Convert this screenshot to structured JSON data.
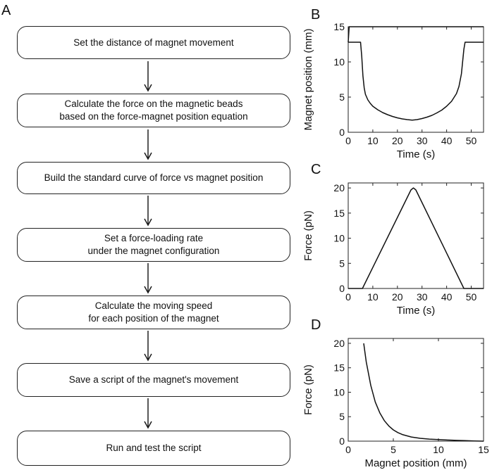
{
  "panel_labels": {
    "a": "A",
    "b": "B",
    "c": "C",
    "d": "D"
  },
  "flowchart": {
    "steps": [
      "Set the distance of magnet movement",
      "Calculate the force on the magnetic beads\nbased on the force-magnet position equation",
      "Build the standard curve of force vs magnet position",
      "Set a force-loading rate\nunder the magnet configuration",
      "Calculate the moving speed\nfor each position of the magnet",
      "Save a script of the magnet's movement",
      "Run and test the script"
    ]
  },
  "chart_data": [
    {
      "panel": "B",
      "type": "line",
      "title": "",
      "xlabel": "Time (s)",
      "ylabel": "Magnet position (mm)",
      "xlim": [
        0,
        55
      ],
      "ylim": [
        0,
        15
      ],
      "xticks": [
        0,
        10,
        20,
        30,
        40,
        50
      ],
      "yticks": [
        0,
        5,
        10,
        15
      ],
      "grid": false,
      "series": [
        {
          "x": [
            0,
            5,
            5.5,
            6,
            6.5,
            7,
            8,
            9,
            10,
            12,
            14,
            16,
            18,
            20,
            22,
            24,
            26,
            28,
            30,
            32,
            34,
            36,
            38,
            40,
            42,
            44,
            45,
            46,
            46.5,
            47,
            47.5,
            55
          ],
          "y": [
            12.8,
            12.8,
            10.8,
            8.0,
            6.3,
            5.4,
            4.6,
            4.1,
            3.7,
            3.2,
            2.8,
            2.5,
            2.25,
            2.05,
            1.9,
            1.8,
            1.72,
            1.8,
            1.95,
            2.15,
            2.4,
            2.75,
            3.15,
            3.7,
            4.4,
            5.5,
            6.5,
            8.3,
            10.0,
            11.8,
            12.8,
            12.8
          ]
        },
        {
          "x": [
            0,
            0.4,
            55
          ],
          "y": [
            12.8,
            15,
            15
          ]
        }
      ]
    },
    {
      "panel": "C",
      "type": "line",
      "title": "",
      "xlabel": "Time (s)",
      "ylabel": "Force (pN)",
      "xlim": [
        0,
        55
      ],
      "ylim": [
        0,
        21
      ],
      "xticks": [
        0,
        10,
        20,
        30,
        40,
        50
      ],
      "yticks": [
        0,
        5,
        10,
        15,
        20
      ],
      "grid": false,
      "series": [
        {
          "x": [
            0,
            5.8,
            25.5,
            26.5,
            27.5,
            47,
            55
          ],
          "y": [
            0,
            0,
            19.6,
            20,
            19.6,
            0,
            0
          ]
        }
      ]
    },
    {
      "panel": "D",
      "type": "line",
      "title": "",
      "xlabel": "Magnet position (mm)",
      "ylabel": "Force (pN)",
      "xlim": [
        0,
        15
      ],
      "ylim": [
        0,
        21
      ],
      "xticks": [
        0,
        5,
        10,
        15
      ],
      "yticks": [
        0,
        5,
        10,
        15,
        20
      ],
      "grid": false,
      "series": [
        {
          "x": [
            1.72,
            2,
            2.5,
            3,
            3.5,
            4,
            4.5,
            5,
            5.5,
            6,
            7,
            8,
            9,
            10,
            11,
            12,
            13,
            14,
            15
          ],
          "y": [
            20,
            16.2,
            11.4,
            8.0,
            5.8,
            4.2,
            3.1,
            2.3,
            1.75,
            1.35,
            0.85,
            0.58,
            0.42,
            0.31,
            0.23,
            0.16,
            0.1,
            0.05,
            0
          ]
        }
      ]
    }
  ]
}
